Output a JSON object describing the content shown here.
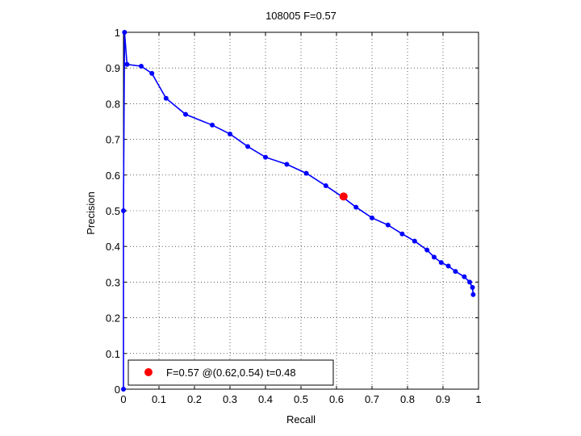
{
  "chart_data": {
    "type": "line",
    "title": "108005 F=0.57",
    "xlabel": "Recall",
    "ylabel": "Precision",
    "xlim": [
      0,
      1
    ],
    "ylim": [
      0,
      1
    ],
    "xticks": [
      "0",
      "0.1",
      "0.2",
      "0.3",
      "0.4",
      "0.5",
      "0.6",
      "0.7",
      "0.8",
      "0.9",
      "1"
    ],
    "yticks": [
      "0",
      "0.1",
      "0.2",
      "0.3",
      "0.4",
      "0.5",
      "0.6",
      "0.7",
      "0.8",
      "0.9",
      "1"
    ],
    "grid": true,
    "legend_position": "bottom-left",
    "series": [
      {
        "color": "#0000ff",
        "x": [
          0.0,
          0.0,
          0.003,
          0.01,
          0.05,
          0.08,
          0.12,
          0.175,
          0.25,
          0.3,
          0.35,
          0.4,
          0.46,
          0.515,
          0.57,
          0.615,
          0.655,
          0.7,
          0.745,
          0.785,
          0.82,
          0.855,
          0.875,
          0.895,
          0.915,
          0.935,
          0.96,
          0.975,
          0.983,
          0.985
        ],
        "y": [
          0.0,
          0.5,
          1.0,
          0.91,
          0.905,
          0.885,
          0.815,
          0.77,
          0.74,
          0.715,
          0.68,
          0.65,
          0.63,
          0.605,
          0.57,
          0.54,
          0.51,
          0.48,
          0.46,
          0.435,
          0.415,
          0.39,
          0.37,
          0.355,
          0.345,
          0.33,
          0.315,
          0.3,
          0.285,
          0.265
        ]
      }
    ],
    "best_point": {
      "x": 0.62,
      "y": 0.54,
      "color": "#ff0000"
    },
    "legend": {
      "label": "F=0.57 @(0.62,0.54) t=0.48"
    }
  }
}
